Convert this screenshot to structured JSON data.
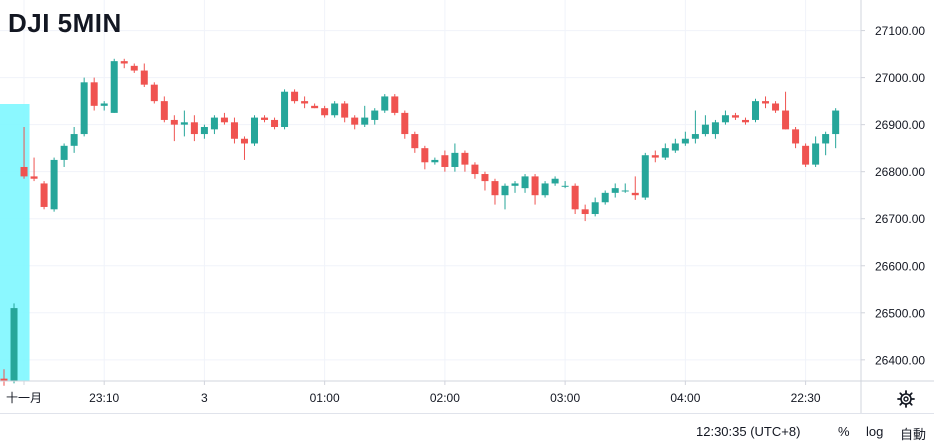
{
  "title": "DJI 5MIN",
  "colors": {
    "up": "#26a69a",
    "down": "#ef5350",
    "highlight": "#7ef7ff",
    "grid": "#f0f3fa",
    "axis_line": "#d1d4dc",
    "text": "#131722"
  },
  "chart_data": {
    "type": "candlestick",
    "y_ticks": [
      "27100.00",
      "27000.00",
      "26900.00",
      "26800.00",
      "26700.00",
      "26600.00",
      "26500.00",
      "26400.00"
    ],
    "ylim": [
      26355,
      27165
    ],
    "y_axis_side": "right",
    "x_ticks": [
      "十一月",
      "23:10",
      "3",
      "01:00",
      "02:00",
      "03:00",
      "04:00",
      "22:30"
    ],
    "grid": true,
    "candles": [
      [
        26360,
        26380,
        26345,
        26355
      ],
      [
        26355,
        26520,
        26350,
        26510
      ],
      [
        26810,
        26895,
        26785,
        26790
      ],
      [
        26790,
        26830,
        26780,
        26785
      ],
      [
        26775,
        26780,
        26720,
        26725
      ],
      [
        26720,
        26830,
        26715,
        26825
      ],
      [
        26825,
        26860,
        26810,
        26855
      ],
      [
        26855,
        26895,
        26840,
        26880
      ],
      [
        26880,
        27000,
        26875,
        26990
      ],
      [
        26990,
        27000,
        26930,
        26940
      ],
      [
        26940,
        26950,
        26930,
        26945
      ],
      [
        26925,
        27040,
        26925,
        27035
      ],
      [
        27035,
        27040,
        27020,
        27030
      ],
      [
        27025,
        27030,
        27010,
        27015
      ],
      [
        27015,
        27030,
        26980,
        26985
      ],
      [
        26985,
        26990,
        26945,
        26950
      ],
      [
        26950,
        26960,
        26905,
        26910
      ],
      [
        26910,
        26920,
        26865,
        26900
      ],
      [
        26900,
        26930,
        26875,
        26905
      ],
      [
        26905,
        26920,
        26865,
        26880
      ],
      [
        26880,
        26900,
        26870,
        26895
      ],
      [
        26890,
        26920,
        26880,
        26915
      ],
      [
        26915,
        26925,
        26900,
        26905
      ],
      [
        26905,
        26915,
        26860,
        26870
      ],
      [
        26870,
        26875,
        26825,
        26860
      ],
      [
        26860,
        26920,
        26855,
        26915
      ],
      [
        26915,
        26920,
        26905,
        26910
      ],
      [
        26910,
        26915,
        26890,
        26895
      ],
      [
        26895,
        26975,
        26890,
        26970
      ],
      [
        26970,
        26975,
        26945,
        26950
      ],
      [
        26950,
        26960,
        26935,
        26945
      ],
      [
        26940,
        26945,
        26935,
        26935
      ],
      [
        26935,
        26940,
        26915,
        26920
      ],
      [
        26920,
        26950,
        26915,
        26945
      ],
      [
        26945,
        26950,
        26905,
        26915
      ],
      [
        26915,
        26920,
        26890,
        26900
      ],
      [
        26900,
        26940,
        26895,
        26915
      ],
      [
        26910,
        26935,
        26900,
        26930
      ],
      [
        26930,
        26965,
        26925,
        26960
      ],
      [
        26960,
        26965,
        26920,
        26925
      ],
      [
        26925,
        26930,
        26870,
        26880
      ],
      [
        26880,
        26885,
        26840,
        26850
      ],
      [
        26850,
        26855,
        26805,
        26820
      ],
      [
        26820,
        26830,
        26815,
        26825
      ],
      [
        26835,
        26845,
        26800,
        26810
      ],
      [
        26810,
        26860,
        26800,
        26840
      ],
      [
        26840,
        26845,
        26800,
        26815
      ],
      [
        26815,
        26820,
        26785,
        26795
      ],
      [
        26795,
        26800,
        26760,
        26780
      ],
      [
        26780,
        26785,
        26730,
        26750
      ],
      [
        26750,
        26775,
        26720,
        26770
      ],
      [
        26770,
        26780,
        26755,
        26775
      ],
      [
        26765,
        26795,
        26755,
        26790
      ],
      [
        26790,
        26795,
        26730,
        26750
      ],
      [
        26750,
        26780,
        26745,
        26775
      ],
      [
        26775,
        26790,
        26770,
        26785
      ],
      [
        26770,
        26780,
        26765,
        26770
      ],
      [
        26770,
        26775,
        26710,
        26720
      ],
      [
        26720,
        26730,
        26695,
        26710
      ],
      [
        26710,
        26745,
        26705,
        26735
      ],
      [
        26735,
        26760,
        26730,
        26755
      ],
      [
        26755,
        26775,
        26745,
        26765
      ],
      [
        26760,
        26775,
        26755,
        26760
      ],
      [
        26755,
        26790,
        26740,
        26750
      ],
      [
        26745,
        26840,
        26740,
        26835
      ],
      [
        26835,
        26845,
        26820,
        26830
      ],
      [
        26830,
        26860,
        26825,
        26850
      ],
      [
        26845,
        26870,
        26840,
        26860
      ],
      [
        26860,
        26885,
        26855,
        26870
      ],
      [
        26870,
        26930,
        26860,
        26880
      ],
      [
        26880,
        26920,
        26875,
        26900
      ],
      [
        26880,
        26910,
        26870,
        26905
      ],
      [
        26905,
        26930,
        26900,
        26920
      ],
      [
        26920,
        26925,
        26910,
        26915
      ],
      [
        26910,
        26915,
        26900,
        26905
      ],
      [
        26910,
        26955,
        26905,
        26950
      ],
      [
        26950,
        26960,
        26935,
        26945
      ],
      [
        26945,
        26950,
        26925,
        26930
      ],
      [
        26930,
        26970,
        26890,
        26890
      ],
      [
        26890,
        26895,
        26850,
        26860
      ],
      [
        26855,
        26860,
        26810,
        26815
      ],
      [
        26815,
        26875,
        26810,
        26860
      ],
      [
        26860,
        26885,
        26835,
        26880
      ],
      [
        26880,
        26935,
        26850,
        26930
      ]
    ],
    "highlight_range": [
      0,
      2
    ]
  },
  "status": {
    "clock": "12:30:35 (UTC+8)",
    "percent": "%",
    "log": "log",
    "auto": "自動"
  },
  "icons": {
    "settings": "gear-icon"
  }
}
